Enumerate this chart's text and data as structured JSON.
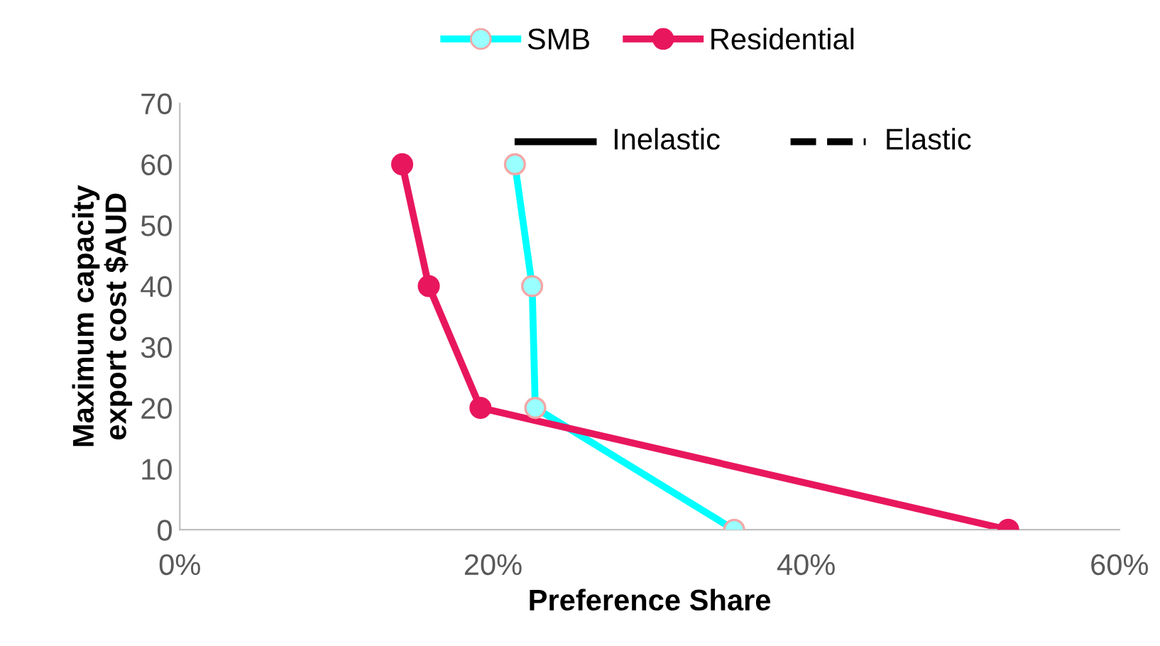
{
  "chart_data": {
    "type": "line",
    "xlabel": "Preference Share",
    "ylabel": "Maximum capacity\nexport cost $AUD",
    "series": [
      {
        "name": "SMB",
        "color": "#00ffff",
        "x": [
          0.214,
          0.225,
          0.227,
          0.354
        ],
        "values": [
          60,
          40,
          20,
          0
        ]
      },
      {
        "name": "Residential",
        "color": "#e8175d",
        "x": [
          0.142,
          0.159,
          0.192,
          0.529
        ],
        "values": [
          60,
          40,
          20,
          0
        ]
      }
    ],
    "xlim": [
      0,
      0.6
    ],
    "xticks": [
      {
        "value": 0,
        "label": "0%"
      },
      {
        "value": 0.2,
        "label": "20%"
      },
      {
        "value": 0.4,
        "label": "40%"
      },
      {
        "value": 0.6,
        "label": "60%"
      }
    ],
    "ylim": [
      0,
      70
    ],
    "yticks": [
      0,
      10,
      20,
      30,
      40,
      50,
      60,
      70
    ],
    "annotations": [
      "Inelastic",
      "Elastic"
    ],
    "legend": "top",
    "grid": false,
    "marker": "circle",
    "line_style": "solid"
  }
}
